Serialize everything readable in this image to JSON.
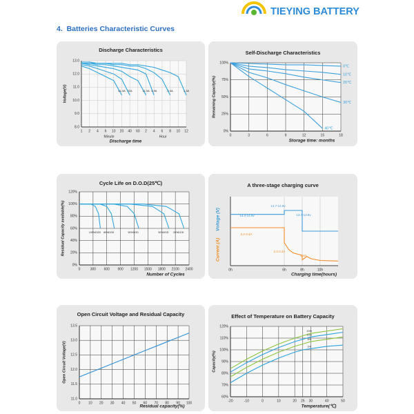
{
  "header": {
    "brand": "TIEYING BATTERY"
  },
  "section_title": "4.  Batteries Characteristic Curves",
  "chart_data": [
    {
      "type": "line",
      "title": "Discharge Characteristics",
      "ylabel": "Voltage(V)",
      "xlabel": "Discharge time",
      "x_group_labels": [
        "Minute",
        "Hour"
      ],
      "categories": [
        "1",
        "2",
        "4",
        "6",
        "10",
        "20",
        "40",
        "60",
        "2",
        "4",
        "6",
        "8",
        "10",
        "12"
      ],
      "ylim": [
        8,
        13
      ],
      "yticks": [
        {
          "value": 8,
          "label": "8.0"
        },
        {
          "value": 9,
          "label": "9.0"
        },
        {
          "value": 10,
          "label": "10.0"
        },
        {
          "value": 11,
          "label": "11.0"
        },
        {
          "value": 12,
          "label": "12.0"
        },
        {
          "value": 13,
          "label": "13.0"
        }
      ],
      "grid": true,
      "series": [
        {
          "name": "41.4A",
          "color": "#2ea5dd",
          "values": [
            12.6,
            12.4,
            12.1,
            11.8,
            11.5,
            10.4,
            null,
            null,
            null,
            null,
            null,
            null,
            null,
            null
          ]
        },
        {
          "name": "22A",
          "color": "#2ea5dd",
          "values": [
            12.7,
            12.6,
            12.4,
            12.2,
            12.0,
            11.6,
            10.4,
            null,
            null,
            null,
            null,
            null,
            null,
            null
          ]
        },
        {
          "name": "11.3A",
          "color": "#2ea5dd",
          "values": [
            12.8,
            12.7,
            12.6,
            12.5,
            12.4,
            12.2,
            11.8,
            11.5,
            10.4,
            null,
            null,
            null,
            null,
            null
          ]
        },
        {
          "name": "4.9A",
          "color": "#2ea5dd",
          "values": [
            12.8,
            12.8,
            12.7,
            12.7,
            12.6,
            12.5,
            12.4,
            12.3,
            12.0,
            10.4,
            null,
            null,
            null,
            null
          ]
        },
        {
          "name": "2.4A",
          "color": "#2ea5dd",
          "values": [
            12.8,
            12.8,
            12.8,
            12.8,
            12.7,
            12.7,
            12.6,
            12.6,
            12.4,
            12.1,
            11.6,
            10.4,
            null,
            null
          ]
        },
        {
          "name": "1.3A",
          "color": "#2ea5dd",
          "values": [
            12.9,
            12.9,
            12.8,
            12.8,
            12.8,
            12.8,
            12.7,
            12.7,
            12.6,
            12.5,
            12.3,
            12.1,
            11.8,
            10.4
          ]
        }
      ]
    },
    {
      "type": "line",
      "title": "Self-Discharge Characteristics",
      "ylabel": "Remaining Capacity(%)",
      "xlabel": "Storage time: months",
      "x": [
        0,
        3,
        6,
        9,
        12,
        15,
        18
      ],
      "xlim": [
        0,
        18
      ],
      "xticks": [
        0,
        3,
        6,
        9,
        12,
        15,
        18
      ],
      "ylim": [
        0,
        100
      ],
      "yticks": [
        {
          "value": 0,
          "label": "0%"
        },
        {
          "value": 25,
          "label": "25%"
        },
        {
          "value": 50,
          "label": "50%"
        },
        {
          "value": 75,
          "label": "75%"
        },
        {
          "value": 100,
          "label": "100%"
        }
      ],
      "grid": true,
      "series": [
        {
          "name": "0℃",
          "color": "#3aa0dd",
          "values": [
            100,
            99,
            98,
            97,
            97,
            96,
            95
          ]
        },
        {
          "name": "10℃",
          "color": "#3aa0dd",
          "values": [
            100,
            95,
            93,
            90,
            88,
            86,
            83
          ]
        },
        {
          "name": "20℃",
          "color": "#3aa0dd",
          "values": [
            100,
            91,
            88,
            84,
            79,
            75,
            71
          ]
        },
        {
          "name": "30℃",
          "color": "#3aa0dd",
          "values": [
            100,
            86,
            78,
            68,
            59,
            50,
            42
          ]
        },
        {
          "name": "40℃",
          "color": "#3aa0dd",
          "values": [
            100,
            80,
            63,
            46,
            29,
            4,
            null
          ]
        }
      ]
    },
    {
      "type": "line",
      "title": "Cycle Life on D.O.D(25℃)",
      "ylabel": "Residual Capacity available(%)",
      "xlabel": "Number of Cycles",
      "xlim": [
        0,
        2400
      ],
      "xticks": [
        0,
        300,
        600,
        900,
        1200,
        1500,
        1800,
        2100,
        2400
      ],
      "ylim": [
        0,
        120
      ],
      "yticks": [
        {
          "value": 0,
          "label": "0%"
        },
        {
          "value": 20,
          "label": "20%"
        },
        {
          "value": 40,
          "label": "40%"
        },
        {
          "value": 60,
          "label": "60%"
        },
        {
          "value": 80,
          "label": "80%"
        },
        {
          "value": 100,
          "label": "100%"
        },
        {
          "value": 120,
          "label": "120%"
        }
      ],
      "grid": true,
      "series": [
        {
          "name": "100%DOD",
          "color": "#2ea5dd",
          "x": [
            0,
            250,
            350,
            420,
            460
          ],
          "values": [
            100,
            100,
            96,
            84,
            60
          ]
        },
        {
          "name": "80%DOD",
          "color": "#2ea5dd",
          "x": [
            0,
            450,
            600,
            700,
            765
          ],
          "values": [
            100,
            100,
            96,
            84,
            60
          ]
        },
        {
          "name": "50%DOD",
          "color": "#2ea5dd",
          "x": [
            0,
            750,
            1050,
            1200,
            1300
          ],
          "values": [
            100,
            100,
            96,
            84,
            60
          ]
        },
        {
          "name": "30%DOD",
          "color": "#2ea5dd",
          "x": [
            0,
            1100,
            1600,
            1850,
            1960
          ],
          "values": [
            100,
            100,
            96,
            84,
            60
          ]
        },
        {
          "name": "20%DOD",
          "color": "#2ea5dd",
          "x": [
            0,
            1400,
            1900,
            2180,
            2290
          ],
          "values": [
            100,
            100,
            96,
            84,
            60
          ]
        }
      ]
    },
    {
      "type": "line",
      "title": "A three-stage charging curve",
      "ylabel": "Voltage (V)",
      "y2label": "Current (A)",
      "xlabel": "Charging time(hours)",
      "xlim": [
        0,
        12
      ],
      "xticks": [
        {
          "value": 0,
          "label": "0h"
        },
        {
          "value": 6,
          "label": "6h"
        },
        {
          "value": 8,
          "label": "8h"
        },
        {
          "value": 10,
          "label": "10h"
        }
      ],
      "ylim": [
        12,
        15.5
      ],
      "y2lim": [
        0,
        6
      ],
      "grid": false,
      "annotations": [
        "14.4-14.9v",
        "14.7-14.9v",
        "13.7-13.8v",
        "3.2-3.4A",
        "2.3-2.2A",
        "0.4A"
      ],
      "series": [
        {
          "color": "#3b9ad9",
          "x": [
            0,
            6,
            6,
            8,
            8,
            12
          ],
          "values": [
            14.6,
            14.6,
            14.8,
            14.8,
            13.75,
            13.75
          ]
        },
        {
          "color": "#f08a24",
          "axis": "y2",
          "x": [
            0,
            6,
            6,
            6.5,
            7,
            8,
            8,
            8.5,
            9,
            10,
            12
          ],
          "values": [
            3.3,
            3.3,
            2.0,
            1.4,
            1.1,
            0.9,
            0.5,
            0.8,
            0.6,
            0.45,
            0.4
          ]
        }
      ]
    },
    {
      "type": "line",
      "title": "Open Circuit Voltage and Residual Capacity",
      "ylabel": "Open Circuit Voltage(V)",
      "xlabel": "Residual capacity(%)",
      "x": [
        0,
        10,
        20,
        30,
        40,
        50,
        60,
        70,
        80,
        90,
        100
      ],
      "xlim": [
        0,
        100
      ],
      "xticks": [
        0,
        10,
        20,
        30,
        40,
        50,
        60,
        70,
        80,
        90,
        100
      ],
      "ylim": [
        11,
        13.5
      ],
      "yticks": [
        {
          "value": 11,
          "label": "11.0"
        },
        11.5,
        {
          "value": 12,
          "label": "12.0"
        },
        12.5,
        {
          "value": 13,
          "label": "13.0"
        },
        13.5
      ],
      "grid": true,
      "series": [
        {
          "color": "#2d8fd6",
          "values": [
            11.75,
            11.9,
            12.05,
            12.2,
            12.35,
            12.5,
            12.65,
            12.8,
            12.95,
            13.1,
            13.25
          ]
        }
      ]
    },
    {
      "type": "line",
      "title": "Effect of Temperature on Battery Capacity",
      "ylabel": "Capacity(%)",
      "xlabel": "Temperature(℃)",
      "x": [
        -20,
        -10,
        0,
        10,
        20,
        25,
        30,
        40,
        50
      ],
      "xlim": [
        -20,
        50
      ],
      "xticks": [
        -20,
        -10,
        0,
        10,
        20,
        25,
        30,
        40,
        50
      ],
      "ylim": [
        60,
        120
      ],
      "yticks": [
        {
          "value": 60,
          "label": "60%"
        },
        {
          "value": 70,
          "label": "70%"
        },
        {
          "value": 80,
          "label": "80%"
        },
        {
          "value": 90,
          "label": "90%"
        },
        {
          "value": 100,
          "label": "100%"
        },
        {
          "value": 110,
          "label": "110%"
        },
        {
          "value": 120,
          "label": "120%"
        }
      ],
      "grid": true,
      "series": [
        {
          "name": "20Hr",
          "color": "#8cc63f",
          "values": [
            84,
            92,
            99,
            105,
            110,
            112,
            114,
            116,
            118
          ]
        },
        {
          "name": "10Hr",
          "color": "#29a3dc",
          "values": [
            81,
            89,
            96,
            102,
            107,
            109,
            111,
            113,
            115
          ]
        },
        {
          "name": "5Hr",
          "color": "#8cc63f",
          "values": [
            77,
            85,
            92,
            98,
            103,
            105,
            107,
            109,
            111
          ]
        },
        {
          "name": "1Hr",
          "color": "#29a3dc",
          "values": [
            72,
            80,
            87,
            93,
            98,
            100,
            101,
            103,
            104
          ]
        }
      ]
    }
  ]
}
